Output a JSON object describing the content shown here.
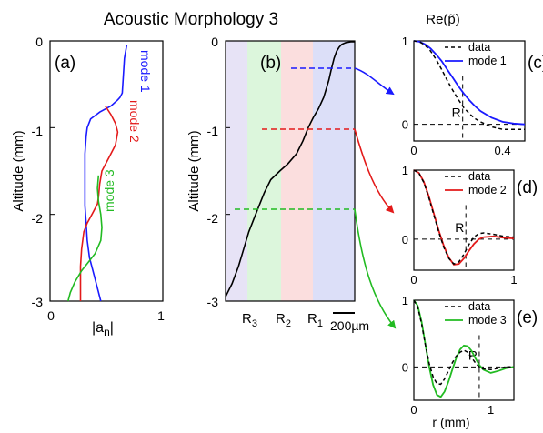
{
  "title": "Acoustic Morphology 3",
  "panel_a": {
    "label": "(a)",
    "ylabel": "Altitude (mm)",
    "xlabel": "|a",
    "xlabel_sub": "n",
    "xlabel_end": "|",
    "xticks": [
      "0",
      "1"
    ],
    "yticks": [
      "0",
      "-1",
      "-2",
      "-3"
    ]
  },
  "panel_b": {
    "label": "(b)",
    "ylabel": "Altitude (mm)",
    "yticks": [
      "0",
      "-1",
      "-2",
      "-3"
    ],
    "radii": [
      {
        "letter": "R",
        "sub": "3"
      },
      {
        "letter": "R",
        "sub": "2"
      },
      {
        "letter": "R",
        "sub": "1"
      }
    ],
    "scale_bar": "200µm",
    "band_colors": [
      "#e7e3f6",
      "#dcf6dc",
      "#fbdede",
      "#dcdff8"
    ]
  },
  "top_ylabel": "Re(p̃)",
  "bottom_xlabel": "r (mm)",
  "colors": {
    "mode1": "#1a1aff",
    "mode2": "#e31a1a",
    "mode3": "#22bb22",
    "data": "#000000"
  },
  "chart_data": [
    {
      "type": "line",
      "panel": "a",
      "xlabel": "|an|",
      "ylabel": "Altitude (mm)",
      "xlim": [
        0,
        1
      ],
      "ylim": [
        -3,
        0
      ],
      "series": [
        {
          "name": "mode 1",
          "x": [
            0.68,
            0.66,
            0.65,
            0.64,
            0.62,
            0.6,
            0.54,
            0.44,
            0.36,
            0.33,
            0.32,
            0.31,
            0.31,
            0.31,
            0.31,
            0.32,
            0.33,
            0.35,
            0.39,
            0.42,
            0.45
          ],
          "y": [
            -0.05,
            -0.2,
            -0.4,
            -0.6,
            -0.65,
            -0.68,
            -0.75,
            -0.82,
            -0.9,
            -1.0,
            -1.1,
            -1.3,
            -1.5,
            -1.7,
            -1.9,
            -2.1,
            -2.3,
            -2.5,
            -2.7,
            -2.85,
            -3.0
          ]
        },
        {
          "name": "mode 2",
          "x": [
            0.49,
            0.54,
            0.58,
            0.6,
            0.58,
            0.52,
            0.46,
            0.44,
            0.43,
            0.42,
            0.38,
            0.33,
            0.3,
            0.28,
            0.27,
            0.27,
            0.27
          ],
          "y": [
            -0.75,
            -0.85,
            -0.95,
            -1.05,
            -1.2,
            -1.35,
            -1.5,
            -1.65,
            -1.8,
            -1.88,
            -1.98,
            -2.1,
            -2.2,
            -2.4,
            -2.6,
            -2.8,
            -3.0
          ]
        },
        {
          "name": "mode 3",
          "x": [
            0.43,
            0.42,
            0.43,
            0.45,
            0.46,
            0.45,
            0.4,
            0.34,
            0.28,
            0.22,
            0.18,
            0.16
          ],
          "y": [
            -1.55,
            -1.7,
            -1.85,
            -2.0,
            -2.15,
            -2.3,
            -2.45,
            -2.55,
            -2.65,
            -2.78,
            -2.9,
            -3.0
          ]
        }
      ]
    },
    {
      "type": "line",
      "panel": "b",
      "ylabel": "Altitude (mm)",
      "ylim": [
        -3,
        0
      ],
      "series": [
        {
          "name": "profile",
          "x": [
            0.0,
            0.05,
            0.1,
            0.14,
            0.18,
            0.22,
            0.26,
            0.3,
            0.35,
            0.42,
            0.48,
            0.55,
            0.6,
            0.64,
            0.68,
            0.72,
            0.76,
            0.78,
            0.8,
            0.82,
            0.84,
            0.86,
            0.88,
            0.9,
            0.93,
            0.97,
            1.0
          ],
          "y": [
            -2.95,
            -2.8,
            -2.6,
            -2.4,
            -2.2,
            -2.05,
            -1.9,
            -1.75,
            -1.6,
            -1.5,
            -1.42,
            -1.3,
            -1.15,
            -1.0,
            -0.88,
            -0.78,
            -0.65,
            -0.55,
            -0.45,
            -0.32,
            -0.2,
            -0.12,
            -0.07,
            -0.04,
            -0.02,
            -0.01,
            -0.01
          ]
        }
      ],
      "dashed_levels": [
        {
          "mode": "mode 1",
          "altitude": -0.3
        },
        {
          "mode": "mode 2",
          "altitude": -1.0
        },
        {
          "mode": "mode 3",
          "altitude": -1.92
        }
      ]
    },
    {
      "type": "line",
      "panel": "c",
      "xlabel": "",
      "ylabel": "Re(p̃)",
      "xlim": [
        0,
        0.5
      ],
      "ylim": [
        -0.2,
        1
      ],
      "xticks": [
        "0",
        "0.4"
      ],
      "yticks": [
        "1",
        "0"
      ],
      "R_value": 0.22,
      "series": [
        {
          "name": "data",
          "x": [
            0,
            0.025,
            0.05,
            0.075,
            0.1,
            0.125,
            0.15,
            0.175,
            0.2,
            0.225,
            0.25,
            0.275,
            0.3,
            0.35,
            0.4,
            0.45,
            0.5
          ],
          "y": [
            1,
            0.99,
            0.95,
            0.88,
            0.78,
            0.66,
            0.53,
            0.41,
            0.3,
            0.2,
            0.13,
            0.07,
            0.03,
            -0.03,
            -0.06,
            -0.06,
            -0.06
          ]
        },
        {
          "name": "mode 1",
          "x": [
            0,
            0.025,
            0.05,
            0.075,
            0.1,
            0.125,
            0.15,
            0.175,
            0.2,
            0.225,
            0.25,
            0.275,
            0.3,
            0.35,
            0.4,
            0.45,
            0.5
          ],
          "y": [
            1,
            0.99,
            0.96,
            0.91,
            0.84,
            0.76,
            0.66,
            0.56,
            0.46,
            0.37,
            0.29,
            0.22,
            0.16,
            0.08,
            0.03,
            0.01,
            0.0
          ]
        }
      ]
    },
    {
      "type": "line",
      "panel": "d",
      "xlabel": "",
      "ylabel": "",
      "xlim": [
        0,
        1
      ],
      "ylim": [
        -0.45,
        1
      ],
      "xticks": [
        "0",
        "1"
      ],
      "yticks": [
        "1",
        "0"
      ],
      "R_value": 0.52,
      "series": [
        {
          "name": "data",
          "x": [
            0,
            0.05,
            0.1,
            0.15,
            0.2,
            0.25,
            0.3,
            0.35,
            0.4,
            0.45,
            0.5,
            0.55,
            0.6,
            0.65,
            0.7,
            0.8,
            0.9,
            1.0
          ],
          "y": [
            1,
            0.96,
            0.82,
            0.6,
            0.35,
            0.1,
            -0.12,
            -0.28,
            -0.36,
            -0.33,
            -0.22,
            -0.08,
            0.03,
            0.08,
            0.09,
            0.07,
            0.04,
            0.03
          ]
        },
        {
          "name": "mode 2",
          "x": [
            0,
            0.05,
            0.1,
            0.15,
            0.2,
            0.25,
            0.3,
            0.35,
            0.4,
            0.45,
            0.5,
            0.55,
            0.6,
            0.65,
            0.7,
            0.8,
            0.9,
            1.0
          ],
          "y": [
            1,
            0.96,
            0.83,
            0.62,
            0.37,
            0.12,
            -0.1,
            -0.27,
            -0.37,
            -0.36,
            -0.28,
            -0.17,
            -0.07,
            0.0,
            0.03,
            0.04,
            0.02,
            0.01
          ]
        }
      ]
    },
    {
      "type": "line",
      "panel": "e",
      "xlabel": "r (mm)",
      "ylabel": "",
      "xlim": [
        0,
        1.3
      ],
      "ylim": [
        -0.5,
        1
      ],
      "xticks": [
        "0",
        "1"
      ],
      "yticks": [
        "1",
        "0"
      ],
      "R_value": 0.85,
      "series": [
        {
          "name": "data",
          "x": [
            0,
            0.05,
            0.1,
            0.15,
            0.2,
            0.25,
            0.3,
            0.35,
            0.4,
            0.45,
            0.5,
            0.55,
            0.6,
            0.65,
            0.7,
            0.75,
            0.8,
            0.85,
            0.9,
            1.0,
            1.1,
            1.2,
            1.3
          ],
          "y": [
            1,
            0.9,
            0.65,
            0.33,
            0.05,
            -0.15,
            -0.25,
            -0.26,
            -0.18,
            -0.06,
            0.06,
            0.16,
            0.22,
            0.25,
            0.22,
            0.14,
            0.06,
            0.0,
            -0.03,
            -0.04,
            -0.02,
            0.0,
            0.0
          ]
        },
        {
          "name": "mode 3",
          "x": [
            0,
            0.05,
            0.1,
            0.15,
            0.2,
            0.25,
            0.3,
            0.35,
            0.4,
            0.45,
            0.5,
            0.55,
            0.6,
            0.65,
            0.7,
            0.75,
            0.8,
            0.85,
            0.9,
            1.0,
            1.1,
            1.2,
            1.3
          ],
          "y": [
            1,
            0.92,
            0.68,
            0.34,
            0.0,
            -0.27,
            -0.42,
            -0.45,
            -0.37,
            -0.22,
            -0.04,
            0.13,
            0.26,
            0.32,
            0.31,
            0.24,
            0.13,
            0.03,
            -0.04,
            -0.09,
            -0.06,
            -0.02,
            0.0
          ]
        }
      ]
    }
  ]
}
